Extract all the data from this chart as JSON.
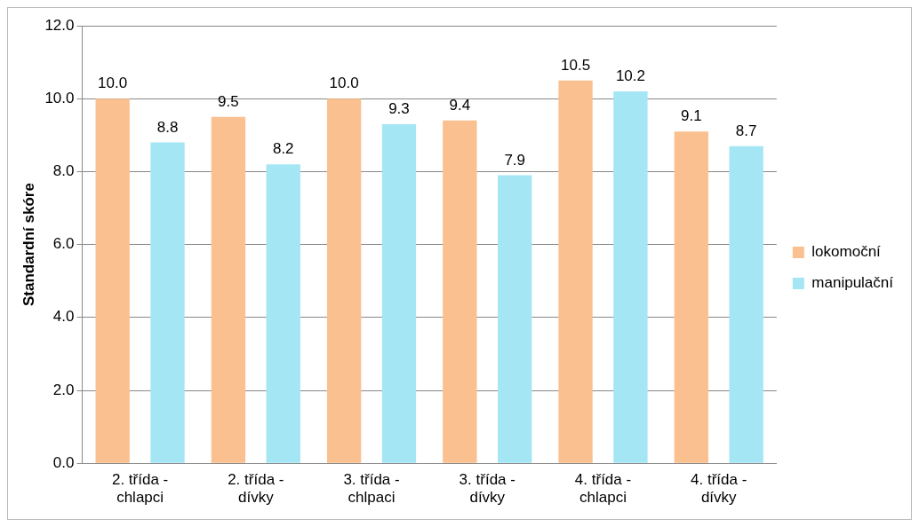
{
  "chart_data": {
    "type": "bar",
    "ylabel": "Standardní skóre",
    "categories": [
      "2. třída - chlapci",
      "2. třída - dívky",
      "3. třída - chlpaci",
      "3. třída - dívky",
      "4. třída - chlapci",
      "4. třída - dívky"
    ],
    "series": [
      {
        "name": "lokomoční",
        "color": "#fbc08f",
        "values": [
          10.0,
          9.5,
          10.0,
          9.4,
          10.5,
          9.1
        ],
        "value_labels": [
          "10.0",
          "9.5",
          "10.0",
          "9.4",
          "10.5",
          "9.1"
        ]
      },
      {
        "name": "manipulační",
        "color": "#a5e6f5",
        "values": [
          8.8,
          8.2,
          9.3,
          7.9,
          10.2,
          8.7
        ],
        "value_labels": [
          "8.8",
          "8.2",
          "9.3",
          "7.9",
          "10.2",
          "8.7"
        ]
      }
    ],
    "ylim": [
      0,
      12
    ],
    "yticks": [
      {
        "value": 0,
        "label": "0.0"
      },
      {
        "value": 2,
        "label": "2.0"
      },
      {
        "value": 4,
        "label": "4.0"
      },
      {
        "value": 6,
        "label": "6.0"
      },
      {
        "value": 8,
        "label": "8.0"
      },
      {
        "value": 10,
        "label": "10.0"
      },
      {
        "value": 12,
        "label": "12.0"
      }
    ],
    "grid": "y",
    "legend": "right"
  }
}
